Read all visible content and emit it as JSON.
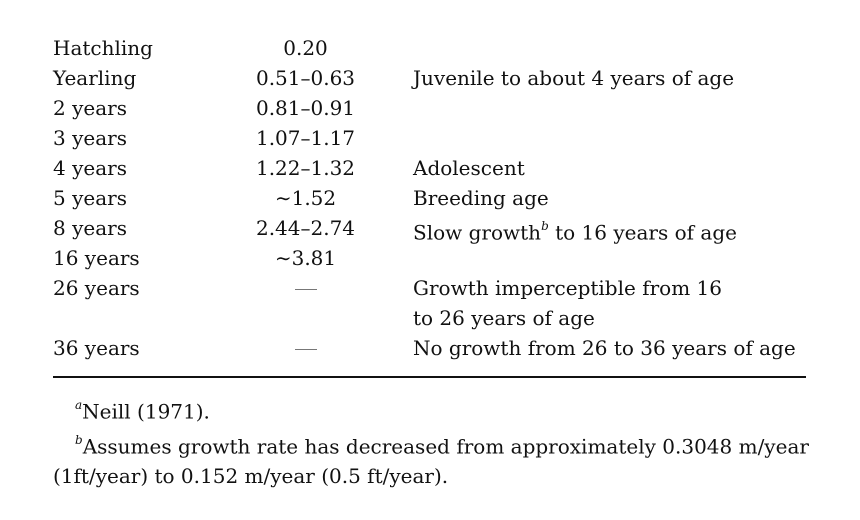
{
  "rows": [
    {
      "age": "Hatchling",
      "length": "0.20",
      "desc": ""
    },
    {
      "age": "Yearling",
      "length": "0.51–0.63",
      "desc": "Juvenile to about 4 years of age"
    },
    {
      "age": "2 years",
      "length": "0.81–0.91",
      "desc": ""
    },
    {
      "age": "3 years",
      "length": "1.07–1.17",
      "desc": ""
    },
    {
      "age": "4 years",
      "length": "1.22–1.32",
      "desc": "Adolescent"
    },
    {
      "age": "5 years",
      "length": "∼1.52",
      "desc": "Breeding age"
    },
    {
      "age": "8 years",
      "length": "2.44–2.74",
      "desc_pre": "Slow growth",
      "desc_sup": "b",
      "desc_post": " to 16 years of age"
    },
    {
      "age": "16 years",
      "length": "∼3.81",
      "desc": ""
    },
    {
      "age": "26 years",
      "length": "",
      "desc_line1": "Growth imperceptible from 16",
      "desc_line2": "to 26 years of age"
    },
    {
      "age": "36 years",
      "length": "",
      "desc": "No growth from 26 to 36 years of age"
    }
  ],
  "footnotes": {
    "a": {
      "mark": "a",
      "text": "Neill (1971)."
    },
    "b": {
      "mark": "b",
      "line1": "Assumes growth rate has decreased from approximately 0.3048 m/year",
      "line2": "(1ft/year) to 0.152 m/year (0.5 ft/year)."
    }
  }
}
